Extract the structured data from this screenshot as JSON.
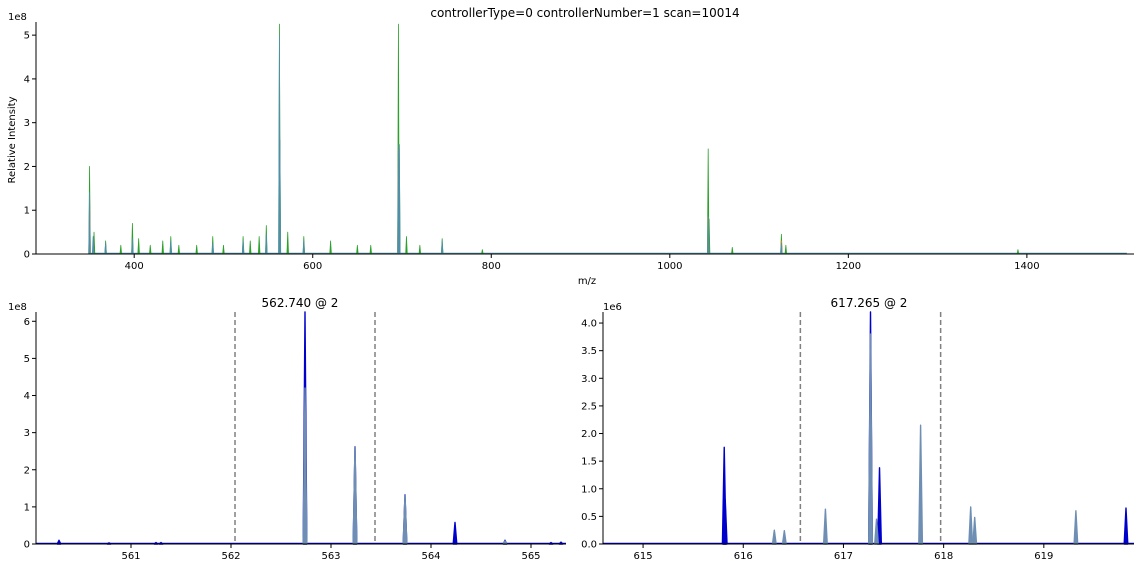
{
  "colors": {
    "blue": "#0000cc",
    "teal": "#4f8fa8",
    "steel": "#6e8fb3",
    "green": "#2ca02c",
    "orange": "#ff7f0e",
    "dash": "#808080"
  },
  "chart_data": [
    {
      "type": "line",
      "title": "controllerType=0 controllerNumber=1 scan=10014",
      "xlabel": "m/z",
      "ylabel": "Relative Intensity",
      "offset_label": "1e8",
      "xlim": [
        290,
        1520
      ],
      "ylim": [
        0,
        5.3
      ],
      "x_ticks": [
        400,
        600,
        800,
        1000,
        1200,
        1400
      ],
      "y_ticks": [
        0,
        1,
        2,
        3,
        4,
        5
      ],
      "grid": false,
      "series": [
        {
          "color": "green",
          "peaks": [
            [
              350,
              2.0
            ],
            [
              355,
              0.5
            ],
            [
              368,
              0.3
            ],
            [
              385,
              0.2
            ],
            [
              398,
              0.7
            ],
            [
              405,
              0.35
            ],
            [
              418,
              0.2
            ],
            [
              432,
              0.3
            ],
            [
              441,
              0.4
            ],
            [
              450,
              0.2
            ],
            [
              470,
              0.2
            ],
            [
              488,
              0.4
            ],
            [
              500,
              0.2
            ],
            [
              522,
              0.4
            ],
            [
              530,
              0.3
            ],
            [
              540,
              0.4
            ],
            [
              548,
              0.65
            ],
            [
              562.7,
              5.25
            ],
            [
              563.2,
              2.6
            ],
            [
              572,
              0.5
            ],
            [
              590,
              0.4
            ],
            [
              620,
              0.3
            ],
            [
              650,
              0.2
            ],
            [
              665,
              0.2
            ],
            [
              696,
              5.25
            ],
            [
              697,
              2.5
            ],
            [
              705,
              0.4
            ],
            [
              720,
              0.2
            ],
            [
              745,
              0.35
            ],
            [
              790,
              0.1
            ],
            [
              1043,
              2.4
            ],
            [
              1044,
              0.8
            ],
            [
              1070,
              0.15
            ],
            [
              1125,
              0.45
            ],
            [
              1130,
              0.2
            ],
            [
              1390,
              0.1
            ]
          ]
        },
        {
          "color": "orange",
          "peaks": [
            [
              350,
              1.3
            ],
            [
              563,
              2.7
            ],
            [
              696,
              2.4
            ],
            [
              1043,
              0.85
            ],
            [
              1125,
              0.3
            ]
          ]
        },
        {
          "color": "teal",
          "peaks": [
            [
              350,
              1.4
            ],
            [
              354,
              0.4
            ],
            [
              368,
              0.25
            ],
            [
              398,
              0.35
            ],
            [
              441,
              0.3
            ],
            [
              488,
              0.25
            ],
            [
              522,
              0.3
            ],
            [
              548,
              0.45
            ],
            [
              562.7,
              5.0
            ],
            [
              563.2,
              2.6
            ],
            [
              590,
              0.3
            ],
            [
              696,
              2.5
            ],
            [
              697,
              2.4
            ],
            [
              745,
              0.3
            ],
            [
              1043,
              0.85
            ],
            [
              1125,
              0.25
            ]
          ]
        }
      ],
      "baseline_end": 1512
    },
    {
      "type": "line",
      "title": "562.740 @ 2",
      "offset_label": "1e8",
      "xlim": [
        560.05,
        565.35
      ],
      "ylim": [
        0,
        6.25
      ],
      "x_ticks": [
        561,
        562,
        563,
        564,
        565
      ],
      "y_ticks": [
        0,
        1,
        2,
        3,
        4,
        5,
        6
      ],
      "isolation_window": [
        562.04,
        563.44
      ],
      "grid": false,
      "series": [
        {
          "color": "blue",
          "peaks": [
            [
              560.28,
              0.1
            ],
            [
              560.78,
              0.03
            ],
            [
              561.25,
              0.04
            ],
            [
              561.3,
              0.04
            ],
            [
              562.74,
              6.25
            ],
            [
              563.24,
              2.62
            ],
            [
              563.74,
              1.32
            ],
            [
              564.24,
              0.58
            ],
            [
              564.74,
              0.1
            ],
            [
              565.2,
              0.04
            ],
            [
              565.3,
              0.05
            ]
          ]
        },
        {
          "color": "steel",
          "peaks": [
            [
              563.24,
              2.62
            ],
            [
              563.74,
              1.3
            ],
            [
              562.74,
              4.2
            ],
            [
              564.74,
              0.08
            ]
          ]
        }
      ]
    },
    {
      "type": "line",
      "title": "617.265 @ 2",
      "offset_label": "1e6",
      "xlim": [
        614.6,
        619.9
      ],
      "ylim": [
        0,
        4.2
      ],
      "x_ticks": [
        615,
        616,
        617,
        618,
        619
      ],
      "y_ticks": [
        0,
        0.5,
        1.0,
        1.5,
        2.0,
        2.5,
        3.0,
        3.5,
        4.0
      ],
      "y_tick_labels": [
        "0.0",
        "0.5",
        "1.0",
        "1.5",
        "2.0",
        "2.5",
        "3.0",
        "3.5",
        "4.0"
      ],
      "isolation_window": [
        616.57,
        617.97
      ],
      "grid": false,
      "series": [
        {
          "color": "blue",
          "peaks": [
            [
              615.81,
              1.75
            ],
            [
              615.82,
              0.8
            ],
            [
              617.27,
              4.2
            ],
            [
              617.36,
              1.38
            ],
            [
              619.82,
              0.65
            ]
          ]
        },
        {
          "color": "steel",
          "peaks": [
            [
              616.31,
              0.25
            ],
            [
              616.41,
              0.24
            ],
            [
              616.82,
              0.63
            ],
            [
              617.27,
              3.8
            ],
            [
              617.33,
              0.45
            ],
            [
              617.77,
              2.15
            ],
            [
              618.27,
              0.67
            ],
            [
              618.31,
              0.48
            ],
            [
              619.32,
              0.6
            ]
          ]
        }
      ]
    }
  ]
}
